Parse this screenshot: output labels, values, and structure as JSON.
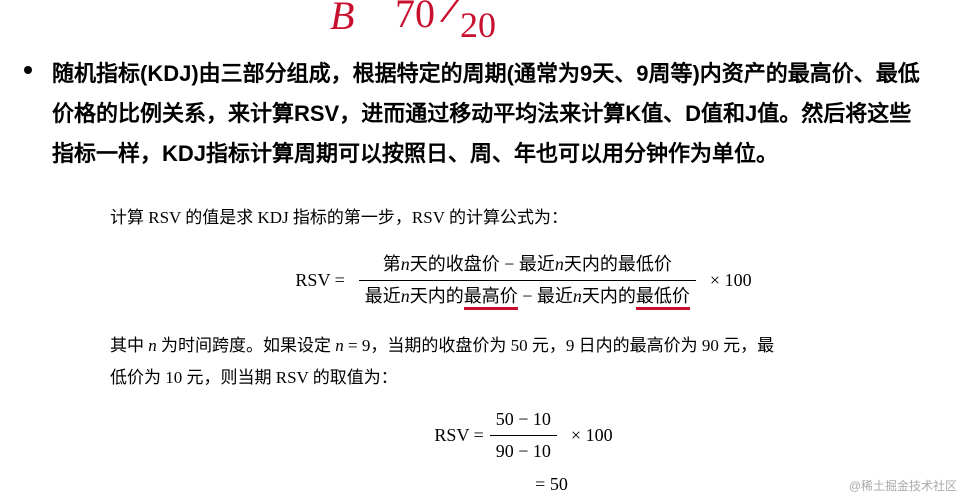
{
  "handwriting": {
    "b": "B",
    "n1": "70",
    "slash": "/",
    "n2": "20",
    "toppart": "7"
  },
  "main": {
    "line1": "随机指标(KDJ)由三部分组成，根据特定的周期(通常为9天、9周等)内资产的最高价、最低",
    "line2": "价格的比例关系，来计算RSV，进而通过移动平均法来计算K值、D值和J值。然后将这些",
    "line3": "指标一样，KDJ指标计算周期可以按照日、周、年也可以用分钟作为单位。"
  },
  "formula": {
    "intro": "计算 RSV 的值是求 KDJ 指标的第一步，RSV 的计算公式为：",
    "lhs": "RSV =",
    "num_a": "第",
    "num_b": "天的收盘价 − 最近",
    "num_c": "天内的最低价",
    "den_a": "最近",
    "den_b": "天内的",
    "den_high": "最高价",
    "den_mid": " − 最近",
    "den_c": "天内的",
    "den_low": "最低价",
    "nvar": "n",
    "times": "× 100",
    "note_a": "其中 ",
    "note_b": " 为时间跨度。如果设定 ",
    "note_c": " = 9，当期的收盘价为 50 元，9 日内的最高价为 90 元，最",
    "note_d": "低价为 10 元，则当期 RSV 的取值为：",
    "ex_num": "50 − 10",
    "ex_den": "90 − 10",
    "ex_result_eq": "= 50"
  },
  "watermark": "@稀土掘金技术社区",
  "colors": {
    "handwriting": "#c8102e",
    "underline": "#c8102e",
    "text": "#000000",
    "bg": "#ffffff"
  }
}
